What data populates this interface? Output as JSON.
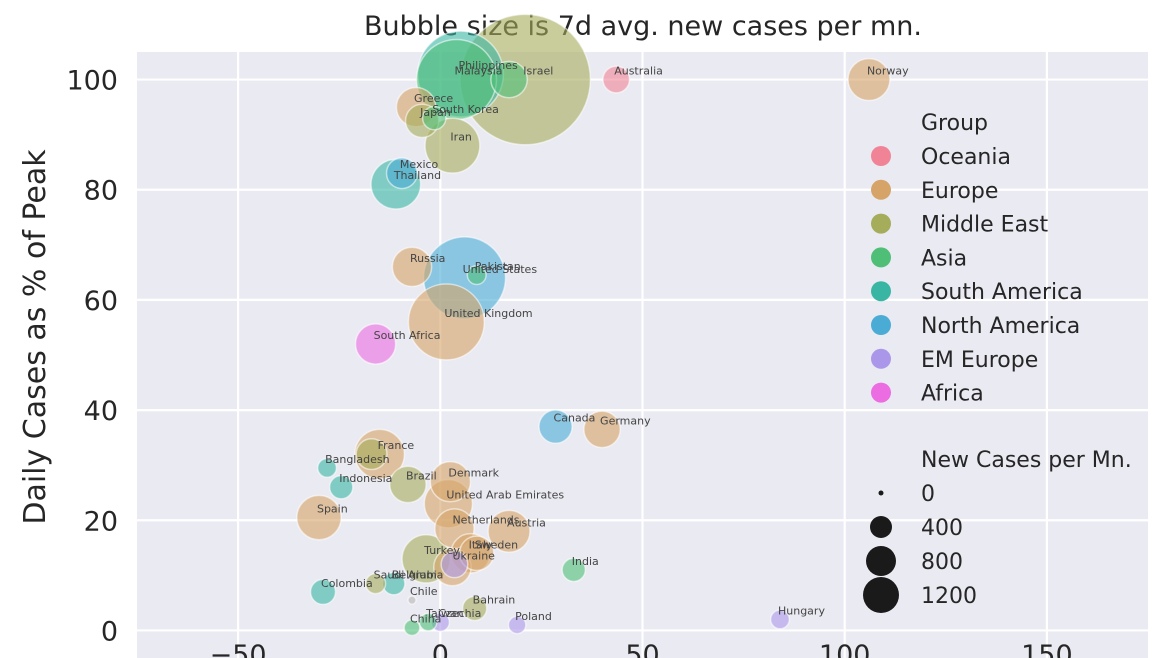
{
  "chart_data": {
    "type": "scatter",
    "title": "Bubble size is 7d avg. new cases per mn.",
    "xlabel": "",
    "ylabel": "Daily Cases as % of Peak",
    "xlim": [
      -75,
      175
    ],
    "ylim": [
      -5,
      105
    ],
    "xticks": [
      -50,
      0,
      50,
      100,
      150
    ],
    "xtick_labels": [
      "−50",
      "0",
      "50",
      "100",
      "150"
    ],
    "yticks": [
      0,
      20,
      40,
      60,
      80,
      100
    ],
    "yticks_labels": [
      "0",
      "20",
      "40",
      "60",
      "80",
      "100"
    ],
    "group_colors": {
      "Oceania": "#f08496",
      "Europe": "#d6a468",
      "Middle East": "#a5ac5a",
      "Asia": "#4fbf78",
      "South America": "#39b6a3",
      "North America": "#4aacd5",
      "EM Europe": "#ab97ea",
      "Africa": "#ec6ce2"
    },
    "points": [
      {
        "country": "Australia",
        "group": "Oceania",
        "x": 43.5,
        "y": 100,
        "cases": 60
      },
      {
        "country": "Norway",
        "group": "Europe",
        "x": 106,
        "y": 100,
        "cases": 200
      },
      {
        "country": "Malaysia",
        "group": "Asia",
        "x": 4,
        "y": 100,
        "cases": 900
      },
      {
        "country": "Philippines",
        "group": "South America",
        "x": 5,
        "y": 101,
        "cases": 1050
      },
      {
        "country": "Israel",
        "group": "Middle East",
        "x": 21,
        "y": 100,
        "cases": 2600
      },
      {
        "country": "",
        "group": "Asia",
        "x": 17,
        "y": 100,
        "cases": 140
      },
      {
        "country": "Greece",
        "group": "Europe",
        "x": -6,
        "y": 95,
        "cases": 170
      },
      {
        "country": "South Korea",
        "group": "Asia",
        "x": -1.5,
        "y": 93,
        "cases": 40
      },
      {
        "country": "Japan",
        "group": "Middle East",
        "x": -4.5,
        "y": 92.5,
        "cases": 110
      },
      {
        "country": "Iran",
        "group": "Middle East",
        "x": 3,
        "y": 88,
        "cases": 380
      },
      {
        "country": "Mexico",
        "group": "North America",
        "x": -9.5,
        "y": 83,
        "cases": 90
      },
      {
        "country": "Thailand",
        "group": "South America",
        "x": -11,
        "y": 81,
        "cases": 300
      },
      {
        "country": "Russia",
        "group": "Europe",
        "x": -7,
        "y": 66,
        "cases": 170
      },
      {
        "country": "Pakistan",
        "group": "Asia",
        "x": 9,
        "y": 64.5,
        "cases": 20
      },
      {
        "country": "United States",
        "group": "North America",
        "x": 6,
        "y": 64,
        "cases": 950
      },
      {
        "country": "United Kingdom",
        "group": "Europe",
        "x": 1.5,
        "y": 56,
        "cases": 800
      },
      {
        "country": "South Africa",
        "group": "Africa",
        "x": -16,
        "y": 52,
        "cases": 180
      },
      {
        "country": "Canada",
        "group": "North America",
        "x": 28.5,
        "y": 37,
        "cases": 110
      },
      {
        "country": "Germany",
        "group": "Europe",
        "x": 40,
        "y": 36.5,
        "cases": 140
      },
      {
        "country": "France",
        "group": "Europe",
        "x": -15,
        "y": 32,
        "cases": 300
      },
      {
        "country": "",
        "group": "Middle East",
        "x": -17,
        "y": 32,
        "cases": 90
      },
      {
        "country": "Bangladesh",
        "group": "South America",
        "x": -28,
        "y": 29.5,
        "cases": 20
      },
      {
        "country": "Brazil",
        "group": "Middle East",
        "x": -8,
        "y": 26.5,
        "cases": 140
      },
      {
        "country": "Denmark",
        "group": "Europe",
        "x": 2.5,
        "y": 27,
        "cases": 180
      },
      {
        "country": "Indonesia",
        "group": "South America",
        "x": -24.5,
        "y": 26,
        "cases": 40
      },
      {
        "country": "United Arab Emirates",
        "group": "Europe",
        "x": 2,
        "y": 23,
        "cases": 280
      },
      {
        "country": "Spain",
        "group": "Europe",
        "x": -30,
        "y": 20.5,
        "cases": 230
      },
      {
        "country": "Netherlands",
        "group": "Europe",
        "x": 3.5,
        "y": 18.5,
        "cases": 170
      },
      {
        "country": "Austria",
        "group": "Europe",
        "x": 17,
        "y": 18,
        "cases": 200
      },
      {
        "country": "Italy",
        "group": "Europe",
        "x": 7.5,
        "y": 14,
        "cases": 170
      },
      {
        "country": "Sweden",
        "group": "Europe",
        "x": 9,
        "y": 14,
        "cases": 120
      },
      {
        "country": "Turkey",
        "group": "Middle East",
        "x": -3.5,
        "y": 13,
        "cases": 280
      },
      {
        "country": "",
        "group": "Europe",
        "x": 3,
        "y": 11.5,
        "cases": 150
      },
      {
        "country": "Ukraine",
        "group": "EM Europe",
        "x": 3.5,
        "y": 12,
        "cases": 60
      },
      {
        "country": "India",
        "group": "Asia",
        "x": 33,
        "y": 11,
        "cases": 40
      },
      {
        "country": "Saudi Arabia",
        "group": "Middle East",
        "x": -16,
        "y": 8.5,
        "cases": 25
      },
      {
        "country": "Belgium",
        "group": "South America",
        "x": -11.5,
        "y": 8.5,
        "cases": 35
      },
      {
        "country": "Colombia",
        "group": "South America",
        "x": -29,
        "y": 7,
        "cases": 50
      },
      {
        "country": "Chile",
        "group": "",
        "x": -7,
        "y": 5.5,
        "cases": 0
      },
      {
        "country": "Bahrain",
        "group": "Middle East",
        "x": 8.5,
        "y": 4,
        "cases": 45
      },
      {
        "country": "Taiwan",
        "group": "Asia",
        "x": -3,
        "y": 1.5,
        "cases": 15
      },
      {
        "country": "Czechia",
        "group": "EM Europe",
        "x": 0,
        "y": 1.5,
        "cases": 18
      },
      {
        "country": "China",
        "group": "Asia",
        "x": -7,
        "y": 0.5,
        "cases": 10
      },
      {
        "country": "Poland",
        "group": "EM Europe",
        "x": 19,
        "y": 1,
        "cases": 15
      },
      {
        "country": "Hungary",
        "group": "EM Europe",
        "x": 84,
        "y": 2,
        "cases": 20
      }
    ],
    "legend": {
      "position": "right",
      "group_title": "Group",
      "groups": [
        "Oceania",
        "Europe",
        "Middle East",
        "Asia",
        "South America",
        "North America",
        "EM Europe",
        "Africa"
      ],
      "size_title": "New Cases per Mn.",
      "size_values": [
        0,
        400,
        800,
        1200
      ],
      "size_labels": [
        "0",
        "400",
        "800",
        "1200"
      ]
    }
  }
}
